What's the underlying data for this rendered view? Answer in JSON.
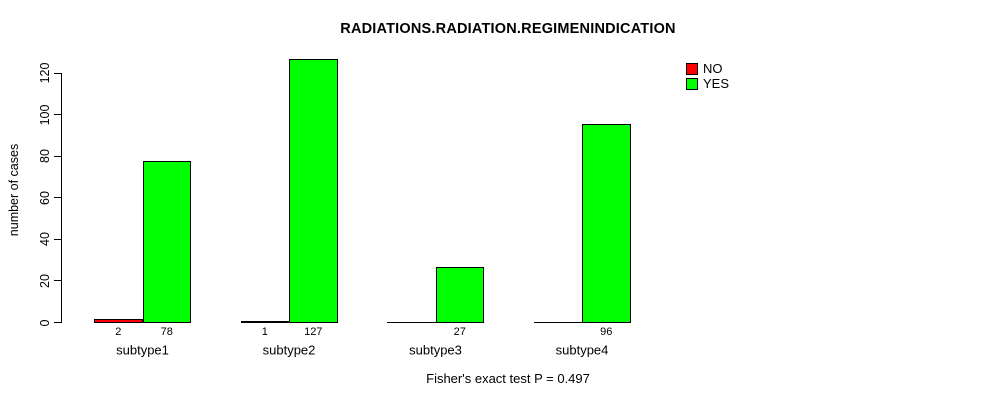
{
  "chart_data": {
    "type": "bar",
    "title": "RADIATIONS.RADIATION.REGIMENINDICATION",
    "ylabel": "number of cases",
    "xlabel": "",
    "caption": "Fisher's exact test P = 0.497",
    "categories": [
      "subtype1",
      "subtype2",
      "subtype3",
      "subtype4"
    ],
    "series": [
      {
        "name": "NO",
        "color": "#FF0000",
        "values": [
          2,
          1,
          0,
          0
        ]
      },
      {
        "name": "YES",
        "color": "#00FF00",
        "values": [
          78,
          127,
          27,
          96
        ]
      }
    ],
    "value_labels": [
      [
        "2",
        "78"
      ],
      [
        "1",
        "127"
      ],
      [
        "",
        "27"
      ],
      [
        "",
        "96"
      ]
    ],
    "yticks": [
      0,
      20,
      40,
      60,
      80,
      100,
      120
    ],
    "ylim": [
      0,
      130
    ],
    "grid": false,
    "legend_position": "top-right",
    "colors": {
      "no": "#FF0000",
      "yes": "#00FF00",
      "axis": "#000000",
      "background": "#FFFFFF"
    }
  }
}
